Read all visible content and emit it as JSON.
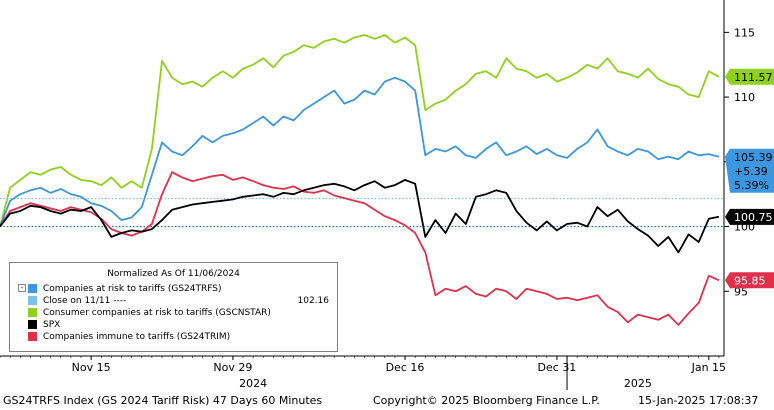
{
  "legend": {
    "header": "Normalized As Of 11/06/2024",
    "close_label": "Close on 11/11 ----",
    "close_value": "102.16"
  },
  "footer": {
    "left": "GS24TRFS Index (GS 2024 Tariff Risk) 47 Days 60 Minutes",
    "center": "Copyright© 2025 Bloomberg Finance L.P.",
    "right": "15-Jan-2025 17:08:37"
  },
  "chart_data": {
    "type": "line",
    "title": "",
    "x_axis": {
      "ticks": [
        {
          "day": 9,
          "label": "Nov 15"
        },
        {
          "day": 23,
          "label": "Nov 29"
        },
        {
          "day": 40,
          "label": "Dec 16"
        },
        {
          "day": 55,
          "label": "Dec 31"
        },
        {
          "day": 70,
          "label": "Jan 15"
        }
      ],
      "year_labels": [
        {
          "day": 25,
          "label": "2024"
        },
        {
          "day": 63,
          "label": "2025"
        }
      ],
      "year_divider_day": 56,
      "range_days": [
        0,
        71.5
      ]
    },
    "y_axis": {
      "side": "right",
      "ticks": [
        95,
        100,
        105,
        110,
        115
      ],
      "range": [
        90,
        117.5
      ]
    },
    "reference_lines": [
      {
        "value": 100,
        "color": "#1e6fb8",
        "style": "dotted"
      },
      {
        "value": 102.16,
        "color": "#7fbfe8",
        "style": "dotted"
      }
    ],
    "series": [
      {
        "name": "Companies at risk to tariffs (GS24TRFS)",
        "color": "#3b97e0",
        "last_value": "105.39",
        "change": "+5.39",
        "change_pct": "5.39%",
        "x": [
          0,
          1,
          2,
          3,
          4,
          5,
          6,
          7,
          8,
          9,
          10,
          11,
          12,
          13,
          14,
          15,
          16,
          17,
          18,
          19,
          20,
          21,
          22,
          23,
          24,
          25,
          26,
          27,
          28,
          29,
          30,
          31,
          32,
          33,
          34,
          35,
          36,
          37,
          38,
          39,
          40,
          41,
          42,
          43,
          44,
          45,
          46,
          47,
          48,
          49,
          50,
          51,
          52,
          53,
          54,
          55,
          56,
          57,
          58,
          59,
          60,
          61,
          62,
          63,
          64,
          65,
          66,
          67,
          68,
          69,
          70,
          71
        ],
        "y": [
          100,
          102,
          102.5,
          102.8,
          103,
          102.6,
          102.9,
          102.5,
          102.3,
          101.8,
          101.6,
          101.2,
          100.5,
          100.7,
          101.5,
          104,
          106.5,
          105.8,
          105.5,
          106.2,
          107,
          106.5,
          107,
          107.2,
          107.5,
          108,
          108.5,
          107.8,
          108.5,
          108.2,
          109,
          109.5,
          110,
          110.5,
          109.5,
          109.8,
          110.5,
          110.2,
          111.2,
          111.5,
          111.2,
          110.5,
          105.5,
          106,
          105.8,
          106.2,
          105.5,
          105.3,
          106,
          106.5,
          105.5,
          105.8,
          106.2,
          105.6,
          106,
          105.5,
          105.3,
          106,
          106.5,
          107.5,
          106.2,
          105.8,
          105.5,
          106,
          105.8,
          105.2,
          105.4,
          105.2,
          105.8,
          105.5,
          105.6,
          105.39
        ]
      },
      {
        "name": "Consumer companies at risk to tariffs (GSCNSTAR)",
        "color": "#8fd11c",
        "last_value": "111.57",
        "x": [
          0,
          1,
          2,
          3,
          4,
          5,
          6,
          7,
          8,
          9,
          10,
          11,
          12,
          13,
          14,
          15,
          16,
          17,
          18,
          19,
          20,
          21,
          22,
          23,
          24,
          25,
          26,
          27,
          28,
          29,
          30,
          31,
          32,
          33,
          34,
          35,
          36,
          37,
          38,
          39,
          40,
          41,
          42,
          43,
          44,
          45,
          46,
          47,
          48,
          49,
          50,
          51,
          52,
          53,
          54,
          55,
          56,
          57,
          58,
          59,
          60,
          61,
          62,
          63,
          64,
          65,
          66,
          67,
          68,
          69,
          70,
          71
        ],
        "y": [
          100,
          103,
          103.6,
          104.2,
          104,
          104.4,
          104.6,
          104,
          103.6,
          103.5,
          103.2,
          103.8,
          103,
          103.5,
          103,
          106,
          112.8,
          111.5,
          111,
          111.2,
          110.8,
          111.5,
          112,
          111.5,
          112.2,
          112.5,
          113,
          112.3,
          113.2,
          113.5,
          114,
          113.8,
          114.3,
          114.5,
          114.2,
          114.6,
          114.8,
          114.5,
          114.8,
          114.2,
          114.6,
          114,
          109,
          109.5,
          109.8,
          110.5,
          111,
          111.8,
          112,
          111.5,
          113,
          112.2,
          112,
          111.5,
          111.8,
          111.2,
          111.5,
          111.9,
          112.5,
          112.2,
          113,
          112,
          111.8,
          111.5,
          112.2,
          111.4,
          111,
          110.8,
          110.2,
          110,
          112,
          111.57
        ]
      },
      {
        "name": "SPX",
        "color": "#000000",
        "last_value": "100.75",
        "x": [
          0,
          1,
          2,
          3,
          4,
          5,
          6,
          7,
          8,
          9,
          10,
          11,
          12,
          13,
          14,
          15,
          16,
          17,
          18,
          19,
          20,
          21,
          22,
          23,
          24,
          25,
          26,
          27,
          28,
          29,
          30,
          31,
          32,
          33,
          34,
          35,
          36,
          37,
          38,
          39,
          40,
          41,
          42,
          43,
          44,
          45,
          46,
          47,
          48,
          49,
          50,
          51,
          52,
          53,
          54,
          55,
          56,
          57,
          58,
          59,
          60,
          61,
          62,
          63,
          64,
          65,
          66,
          67,
          68,
          69,
          70,
          71
        ],
        "y": [
          100,
          101,
          101.2,
          101.6,
          101.5,
          101.2,
          101,
          101.3,
          101.2,
          101.5,
          100.5,
          99.2,
          99.5,
          99.7,
          99.6,
          99.8,
          100.5,
          101.3,
          101.5,
          101.7,
          101.8,
          101.9,
          102,
          102.1,
          102.3,
          102.4,
          102.5,
          102.3,
          102.6,
          102.5,
          102.8,
          103,
          103.2,
          103.3,
          103.1,
          102.8,
          103.2,
          103.5,
          103,
          103.2,
          103.6,
          103.3,
          99.2,
          100.5,
          99.5,
          101,
          100.2,
          102.3,
          102.5,
          102.8,
          102.6,
          101.2,
          100.3,
          99.7,
          100.4,
          99.7,
          100.2,
          100.3,
          100,
          101.5,
          100.8,
          101.3,
          100.4,
          99.8,
          99.3,
          98.5,
          99.2,
          98,
          99.4,
          98.8,
          100.6,
          100.75
        ]
      },
      {
        "name": "Companies immune to tariffs (GS24TRIM)",
        "color": "#e0304a",
        "last_value": "95.85",
        "x": [
          0,
          1,
          2,
          3,
          4,
          5,
          6,
          7,
          8,
          9,
          10,
          11,
          12,
          13,
          14,
          15,
          16,
          17,
          18,
          19,
          20,
          21,
          22,
          23,
          24,
          25,
          26,
          27,
          28,
          29,
          30,
          31,
          32,
          33,
          34,
          35,
          36,
          37,
          38,
          39,
          40,
          41,
          42,
          43,
          44,
          45,
          46,
          47,
          48,
          49,
          50,
          51,
          52,
          53,
          54,
          55,
          56,
          57,
          58,
          59,
          60,
          61,
          62,
          63,
          64,
          65,
          66,
          67,
          68,
          69,
          70,
          71
        ],
        "y": [
          100,
          101.2,
          101.5,
          101.8,
          101.6,
          101.4,
          101.2,
          101.5,
          101.3,
          101.1,
          100.6,
          99.8,
          99.5,
          99.3,
          99.6,
          100.2,
          102.5,
          104.2,
          103.8,
          103.5,
          103.7,
          103.9,
          104,
          103.6,
          103.8,
          103.5,
          103.2,
          103,
          102.9,
          103.1,
          102.7,
          102.6,
          102.8,
          102.4,
          102.2,
          102,
          101.8,
          101.3,
          100.8,
          100.5,
          100.1,
          99.5,
          98,
          94.7,
          95.2,
          95,
          95.4,
          94.8,
          94.6,
          95.2,
          95,
          94.4,
          95.2,
          95,
          94.8,
          94.4,
          94.5,
          94.3,
          94.5,
          94.7,
          93.8,
          93.4,
          92.6,
          93.2,
          93,
          92.8,
          93.2,
          92.4,
          93.3,
          94.1,
          96.2,
          95.85
        ]
      }
    ]
  }
}
